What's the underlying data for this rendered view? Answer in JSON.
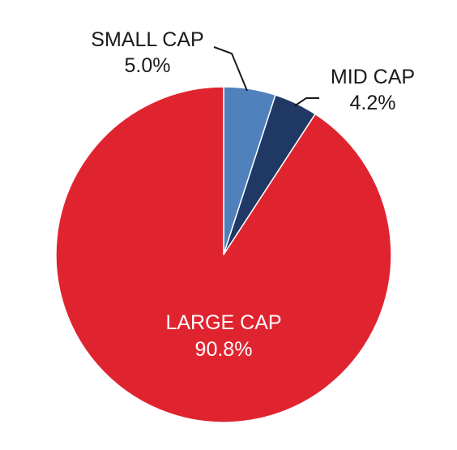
{
  "chart_data": {
    "type": "pie",
    "slices": [
      {
        "label": "SMALL CAP",
        "value": 5.0,
        "value_label": "5.0%",
        "color": "#4f81bd",
        "label_color": "#1a1a1a",
        "label_placement": "outside"
      },
      {
        "label": "MID CAP",
        "value": 4.2,
        "value_label": "4.2%",
        "color": "#1f3864",
        "label_color": "#1a1a1a",
        "label_placement": "outside"
      },
      {
        "label": "LARGE CAP",
        "value": 90.8,
        "value_label": "90.8%",
        "color": "#e0242f",
        "label_color": "#ffffff",
        "label_placement": "inside"
      }
    ],
    "start_angle": "12 o'clock",
    "direction": "clockwise",
    "legend": "none"
  }
}
